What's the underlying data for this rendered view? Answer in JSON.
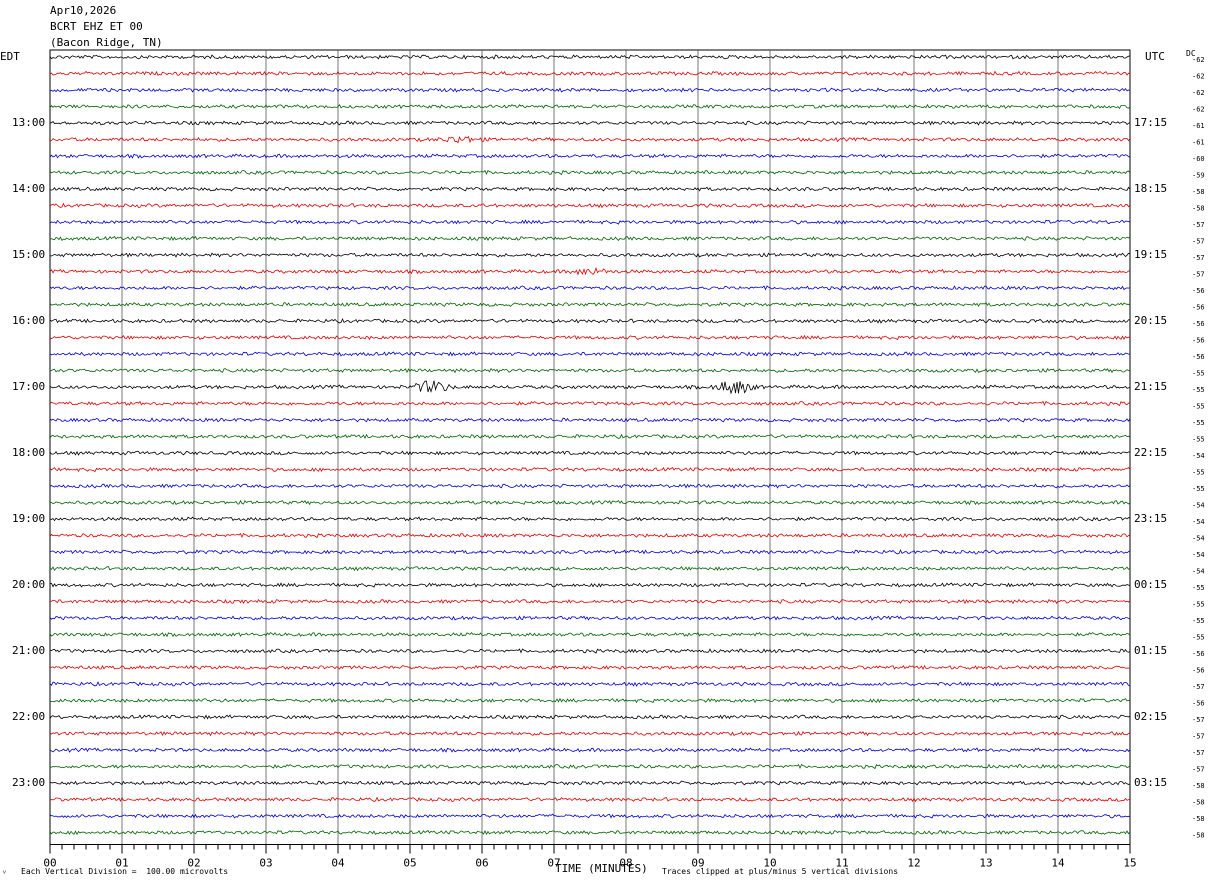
{
  "header": {
    "date": "Apr10,2026",
    "station": "BCRT EHZ ET 00",
    "location": "(Bacon Ridge, TN)"
  },
  "labels": {
    "left_tz": "EDT",
    "right_tz": "UTC",
    "dc": "DC",
    "x_axis": "TIME (MINUTES)",
    "footer_left": "Each Vertical Division =  100.00 microvolts",
    "footer_right": "Traces clipped at plus/minus 5 vertical divisions",
    "corner_mark": "ⱽ"
  },
  "colors": [
    "#000000",
    "#dd0000",
    "#0000cc",
    "#006400"
  ],
  "chart_data": {
    "type": "line",
    "title": "BCRT EHZ ET 00",
    "xlabel": "TIME (MINUTES)",
    "xlim": [
      0,
      15
    ],
    "x_ticks": [
      "00",
      "01",
      "02",
      "03",
      "04",
      "05",
      "06",
      "07",
      "08",
      "09",
      "10",
      "11",
      "12",
      "13",
      "14",
      "15"
    ],
    "traces_per_hour": 4,
    "trace_count": 48,
    "left_hour_labels": [
      "13:00",
      "14:00",
      "15:00",
      "16:00",
      "17:00",
      "18:00",
      "19:00",
      "20:00",
      "21:00",
      "22:00",
      "23:00"
    ],
    "right_hour_labels": [
      "17:15",
      "18:15",
      "19:15",
      "20:15",
      "21:15",
      "22:15",
      "23:15",
      "00:15",
      "01:15",
      "02:15",
      "03:15"
    ],
    "dc_offsets": [
      -62,
      -62,
      -62,
      -62,
      -61,
      -61,
      -60,
      -59,
      -58,
      -58,
      -57,
      -57,
      -57,
      -57,
      -56,
      -56,
      -56,
      -56,
      -56,
      -55,
      -55,
      -55,
      -55,
      -55,
      -54,
      -55,
      -55,
      -54,
      -54,
      -54,
      -54,
      -54,
      -55,
      -55,
      -55,
      -55,
      -56,
      -56,
      -57,
      -56,
      -57,
      -57,
      -57,
      -57,
      -58,
      -58,
      -58,
      -58
    ],
    "vertical_division_microvolts": 100.0,
    "events": [
      {
        "trace": 20,
        "minute": 5.3,
        "amplitude": 6
      },
      {
        "trace": 20,
        "minute": 9.5,
        "amplitude": 7
      },
      {
        "trace": 13,
        "minute": 7.5,
        "amplitude": 3
      },
      {
        "trace": 5,
        "minute": 5.7,
        "amplitude": 3
      }
    ]
  }
}
